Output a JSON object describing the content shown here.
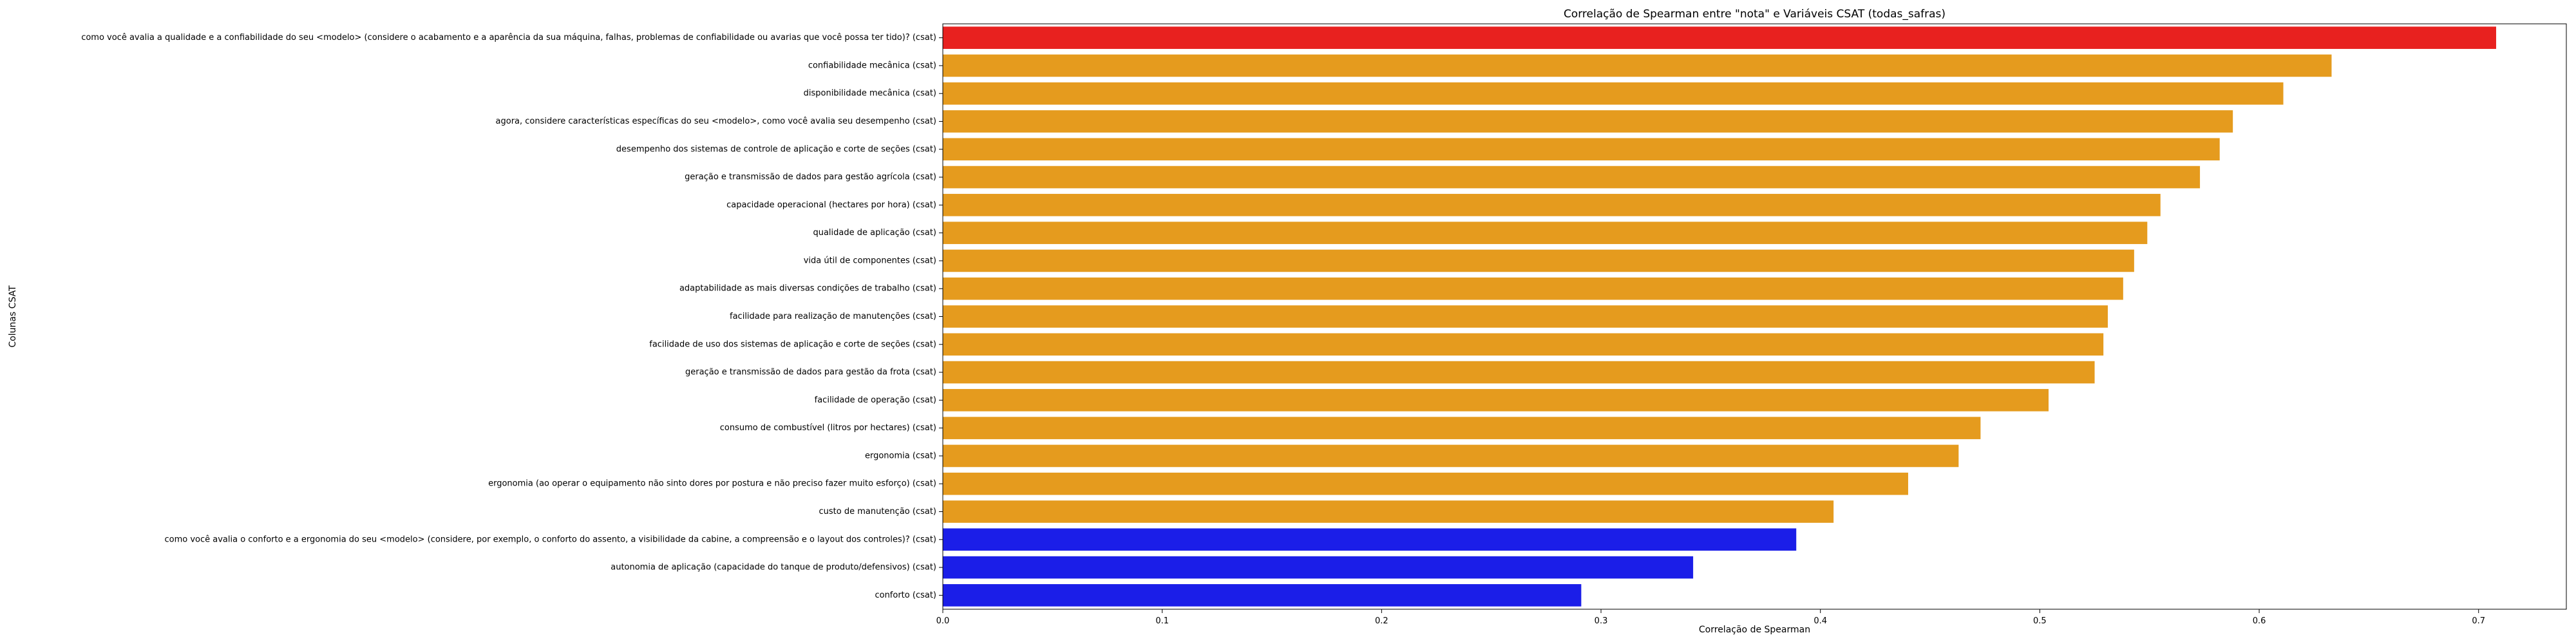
{
  "chart_data": {
    "type": "bar",
    "orientation": "horizontal",
    "title": "Correlação de Spearman entre \"nota\" e Variáveis CSAT (todas_safras)",
    "xlabel": "Correlação de Spearman",
    "ylabel": "Colunas CSAT",
    "xlim": [
      0,
      0.74
    ],
    "xticks": [
      "0.0",
      "0.1",
      "0.2",
      "0.3",
      "0.4",
      "0.5",
      "0.6",
      "0.7"
    ],
    "grid": false,
    "categories": [
      "como você avalia a qualidade e a confiabilidade do seu <modelo> (considere o acabamento e a aparência da sua máquina, falhas, problemas de confiabilidade ou avarias que você possa ter tido)? (csat)",
      "confiabilidade mecânica (csat)",
      "disponibilidade mecânica (csat)",
      "agora, considere características específicas do seu <modelo>, como você avalia seu desempenho (csat)",
      "desempenho dos sistemas de controle de aplicação e corte de seções (csat)",
      "geração e transmissão de dados para gestão agrícola (csat)",
      "capacidade operacional (hectares por hora) (csat)",
      "qualidade de aplicação (csat)",
      "vida útil de componentes (csat)",
      "adaptabilidade as mais diversas condições de trabalho (csat)",
      "facilidade para realização de manutenções (csat)",
      "facilidade de uso dos sistemas de aplicação e corte de seções (csat)",
      "geração e transmissão de dados para gestão da frota (csat)",
      "facilidade de operação (csat)",
      "consumo de combustível (litros por hectares) (csat)",
      "ergonomia (csat)",
      "ergonomia (ao operar o equipamento não sinto dores por postura e não preciso fazer muito esforço) (csat)",
      "custo de manutenção (csat)",
      "como você avalia o conforto e a ergonomia do seu <modelo>  (considere, por exemplo, o conforto do assento, a visibilidade da cabine, a compreensão e o layout dos controles)? (csat)",
      "autonomia de aplicação (capacidade do tanque de produto/defensivos) (csat)",
      "conforto (csat)"
    ],
    "values": [
      0.708,
      0.633,
      0.611,
      0.588,
      0.582,
      0.573,
      0.555,
      0.549,
      0.543,
      0.538,
      0.531,
      0.529,
      0.525,
      0.504,
      0.473,
      0.463,
      0.44,
      0.406,
      0.389,
      0.342,
      0.291
    ],
    "colors": [
      "#e8211f",
      "#e59b1e",
      "#e59b1e",
      "#e59b1e",
      "#e59b1e",
      "#e59b1e",
      "#e59b1e",
      "#e59b1e",
      "#e59b1e",
      "#e59b1e",
      "#e59b1e",
      "#e59b1e",
      "#e59b1e",
      "#e59b1e",
      "#e59b1e",
      "#e59b1e",
      "#e59b1e",
      "#e59b1e",
      "#1b1ee8",
      "#1b1ee8",
      "#1b1ee8"
    ]
  }
}
